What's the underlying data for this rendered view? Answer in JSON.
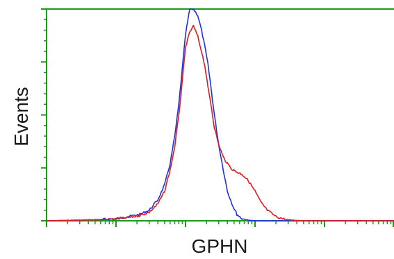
{
  "chart_data": {
    "type": "line",
    "title": "",
    "xlabel": "GPHN",
    "ylabel": "Events",
    "x_scale": "log",
    "xlim": [
      1,
      100000
    ],
    "ylim": [
      0,
      100
    ],
    "grid": false,
    "legend": "none",
    "series": [
      {
        "color": "#1f2fe0",
        "x": [
          1,
          3,
          6,
          10,
          15,
          22,
          30,
          40,
          50,
          60,
          70,
          80,
          90,
          100,
          115,
          130,
          150,
          170,
          190,
          210,
          230,
          260,
          300,
          350,
          400,
          480,
          550,
          650,
          800,
          1000,
          2000,
          100000
        ],
        "y": [
          0,
          0.3,
          0.6,
          1,
          2,
          3,
          5,
          10,
          17,
          27,
          40,
          55,
          72,
          88,
          100,
          100,
          97,
          90,
          82,
          74,
          64,
          50,
          36,
          24,
          14,
          7,
          3,
          1,
          0.3,
          0,
          0,
          0
        ]
      },
      {
        "color": "#e01b1b",
        "x": [
          1,
          3,
          6,
          10,
          15,
          22,
          30,
          40,
          50,
          60,
          70,
          80,
          90,
          100,
          115,
          130,
          150,
          170,
          190,
          210,
          230,
          260,
          300,
          350,
          400,
          480,
          550,
          650,
          800,
          1000,
          1200,
          1500,
          2000,
          2500,
          3000,
          4000,
          5000,
          7000,
          10000,
          100000
        ],
        "y": [
          0,
          0.3,
          0.5,
          0.8,
          1.5,
          2.5,
          4,
          8,
          14,
          24,
          35,
          50,
          66,
          82,
          89,
          92,
          87,
          80,
          73,
          63,
          56,
          44,
          36,
          30,
          27,
          24,
          23,
          22,
          19,
          14,
          9,
          5,
          2,
          1,
          0.5,
          0.2,
          0,
          0,
          0,
          0
        ]
      }
    ]
  },
  "colors": {
    "frame": "#1a9a1a",
    "blue": "#1f2fe0",
    "red": "#e01b1b"
  }
}
